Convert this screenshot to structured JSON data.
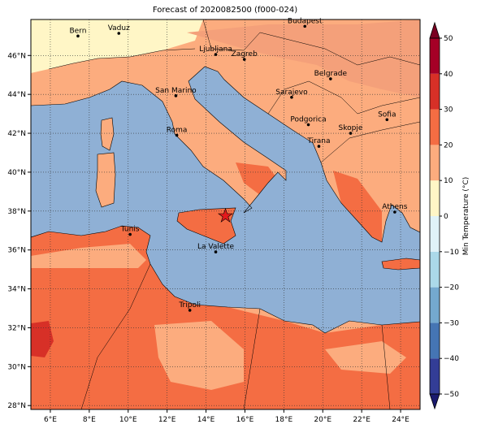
{
  "title": "Forecast of 2020082500 (f000-024)",
  "map": {
    "xlim": [
      5,
      25
    ],
    "ylim": [
      27.8,
      47.85
    ],
    "grid": true,
    "xticks": [
      {
        "value": 6,
        "label": "6°E"
      },
      {
        "value": 8,
        "label": "8°E"
      },
      {
        "value": 10,
        "label": "10°E"
      },
      {
        "value": 12,
        "label": "12°E"
      },
      {
        "value": 14,
        "label": "14°E"
      },
      {
        "value": 16,
        "label": "16°E"
      },
      {
        "value": 18,
        "label": "18°E"
      },
      {
        "value": 20,
        "label": "20°E"
      },
      {
        "value": 22,
        "label": "22°E"
      },
      {
        "value": 24,
        "label": "24°E"
      }
    ],
    "yticks": [
      {
        "value": 28,
        "label": "28°N"
      },
      {
        "value": 30,
        "label": "30°N"
      },
      {
        "value": 32,
        "label": "32°N"
      },
      {
        "value": 34,
        "label": "34°N"
      },
      {
        "value": 36,
        "label": "36°N"
      },
      {
        "value": 38,
        "label": "38°N"
      },
      {
        "value": 40,
        "label": "40°N"
      },
      {
        "value": 42,
        "label": "42°N"
      },
      {
        "value": 44,
        "label": "44°N"
      },
      {
        "value": 46,
        "label": "46°N"
      }
    ]
  },
  "cities": [
    {
      "name": "Bern",
      "lon": 7.42,
      "lat": 47.0
    },
    {
      "name": "Vaduz",
      "lon": 9.52,
      "lat": 47.14
    },
    {
      "name": "Budapest",
      "lon": 19.08,
      "lat": 47.5
    },
    {
      "name": "Ljubljana",
      "lon": 14.5,
      "lat": 46.05
    },
    {
      "name": "Zagreb",
      "lon": 15.97,
      "lat": 45.8
    },
    {
      "name": "San Marino",
      "lon": 12.45,
      "lat": 43.93
    },
    {
      "name": "Sarajevo",
      "lon": 18.4,
      "lat": 43.85
    },
    {
      "name": "Belgrade",
      "lon": 20.4,
      "lat": 44.8
    },
    {
      "name": "Sofia",
      "lon": 23.3,
      "lat": 42.7
    },
    {
      "name": "Roma",
      "lon": 12.5,
      "lat": 41.9
    },
    {
      "name": "Podgorica",
      "lon": 19.26,
      "lat": 42.44
    },
    {
      "name": "Skopje",
      "lon": 21.43,
      "lat": 42.0
    },
    {
      "name": "Tirana",
      "lon": 19.8,
      "lat": 41.33
    },
    {
      "name": "Athens",
      "lon": 23.7,
      "lat": 37.95
    },
    {
      "name": "Tunis",
      "lon": 10.1,
      "lat": 36.8
    },
    {
      "name": "La Valette",
      "lon": 14.5,
      "lat": 35.9
    },
    {
      "name": "Tripoli",
      "lon": 13.17,
      "lat": 32.9
    }
  ],
  "marker": {
    "lon": 15.0,
    "lat": 37.75,
    "color": "#e31a1c"
  },
  "colorbar": {
    "label": "Min Temperature (°C)",
    "levels": [
      -50,
      -40,
      -30,
      -20,
      -10,
      0,
      10,
      20,
      30,
      40,
      50
    ],
    "colors": [
      "#333d96",
      "#4575b4",
      "#74a9cf",
      "#abd9e9",
      "#e0f3f8",
      "#fff6c6",
      "#fcac7e",
      "#f46d43",
      "#d73027",
      "#a50026"
    ],
    "under_color": "#1a1a6e",
    "over_color": "#7a0021",
    "ticks": [
      {
        "value": -50,
        "label": "−50"
      },
      {
        "value": -40,
        "label": "−40"
      },
      {
        "value": -30,
        "label": "−30"
      },
      {
        "value": -20,
        "label": "−20"
      },
      {
        "value": -10,
        "label": "−10"
      },
      0,
      10,
      20,
      30,
      40,
      50
    ]
  }
}
